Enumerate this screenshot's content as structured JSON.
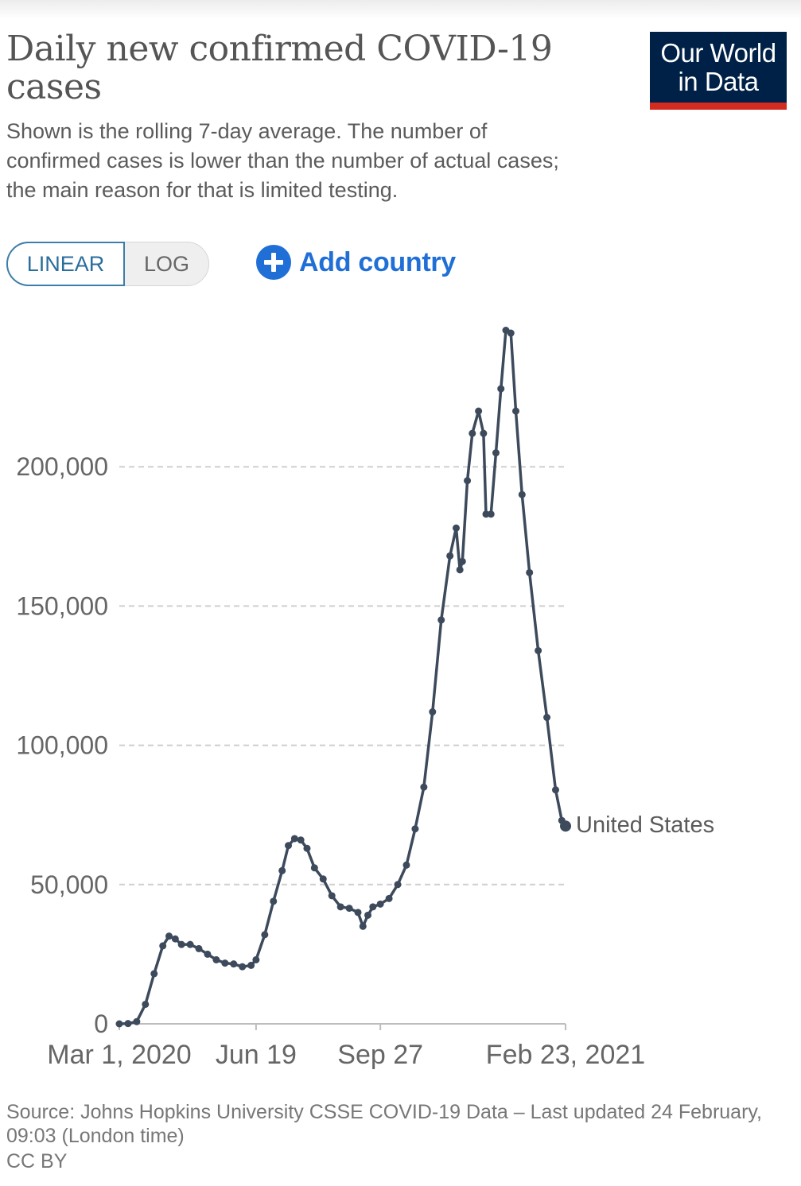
{
  "header": {
    "title": "Daily new confirmed COVID-19 cases",
    "subtitle": "Shown is the rolling 7-day average. The number of confirmed cases is lower than the number of actual cases; the main reason for that is limited testing.",
    "logo_line1": "Our World",
    "logo_line2": "in Data"
  },
  "controls": {
    "linear_label": "LINEAR",
    "log_label": "LOG",
    "selected_scale": "LINEAR",
    "add_country_label": "Add country"
  },
  "colors": {
    "series": "#3d4a5c",
    "accent_blue": "#1f6fd6",
    "toggle_border": "#3c7ea8",
    "logo_bg": "#002147",
    "logo_bar": "#d42b21"
  },
  "footer": {
    "source": "Source: Johns Hopkins University CSSE COVID-19 Data – Last updated 24 February, 09:03 (London time)",
    "license": "CC BY"
  },
  "chart_data": {
    "type": "line",
    "title": "Daily new confirmed COVID-19 cases",
    "xlabel": "",
    "ylabel": "",
    "ylim": [
      0,
      250000
    ],
    "x_range": [
      "2020-03-01",
      "2021-02-23"
    ],
    "yticks": [
      0,
      50000,
      100000,
      150000,
      200000
    ],
    "ytick_labels": [
      "0",
      "50,000",
      "100,000",
      "150,000",
      "200,000"
    ],
    "xticks": [
      "2020-03-01",
      "2020-06-19",
      "2020-09-27",
      "2021-02-23"
    ],
    "xtick_labels": [
      "Mar 1, 2020",
      "Jun 19",
      "Sep 27",
      "Feb 23, 2021"
    ],
    "grid": "horizontal dashed",
    "markers": true,
    "series": [
      {
        "name": "United States",
        "points": [
          [
            "2020-03-01",
            0
          ],
          [
            "2020-03-08",
            100
          ],
          [
            "2020-03-15",
            800
          ],
          [
            "2020-03-22",
            7000
          ],
          [
            "2020-03-29",
            18000
          ],
          [
            "2020-04-05",
            28000
          ],
          [
            "2020-04-10",
            31500
          ],
          [
            "2020-04-15",
            30500
          ],
          [
            "2020-04-20",
            28500
          ],
          [
            "2020-04-27",
            28500
          ],
          [
            "2020-05-04",
            27000
          ],
          [
            "2020-05-11",
            25000
          ],
          [
            "2020-05-18",
            23000
          ],
          [
            "2020-05-25",
            21800
          ],
          [
            "2020-06-01",
            21500
          ],
          [
            "2020-06-08",
            20500
          ],
          [
            "2020-06-15",
            21000
          ],
          [
            "2020-06-19",
            23000
          ],
          [
            "2020-06-26",
            32000
          ],
          [
            "2020-07-03",
            44000
          ],
          [
            "2020-07-10",
            55000
          ],
          [
            "2020-07-15",
            64000
          ],
          [
            "2020-07-20",
            66500
          ],
          [
            "2020-07-25",
            66000
          ],
          [
            "2020-07-30",
            63000
          ],
          [
            "2020-08-05",
            56000
          ],
          [
            "2020-08-12",
            52000
          ],
          [
            "2020-08-19",
            46000
          ],
          [
            "2020-08-26",
            42000
          ],
          [
            "2020-09-02",
            41500
          ],
          [
            "2020-09-09",
            40000
          ],
          [
            "2020-09-13",
            35000
          ],
          [
            "2020-09-17",
            39000
          ],
          [
            "2020-09-21",
            42000
          ],
          [
            "2020-09-27",
            43000
          ],
          [
            "2020-10-04",
            45000
          ],
          [
            "2020-10-11",
            50000
          ],
          [
            "2020-10-18",
            57000
          ],
          [
            "2020-10-25",
            70000
          ],
          [
            "2020-11-01",
            85000
          ],
          [
            "2020-11-08",
            112000
          ],
          [
            "2020-11-15",
            145000
          ],
          [
            "2020-11-22",
            168000
          ],
          [
            "2020-11-27",
            178000
          ],
          [
            "2020-11-30",
            163000
          ],
          [
            "2020-12-02",
            166000
          ],
          [
            "2020-12-06",
            195000
          ],
          [
            "2020-12-10",
            212000
          ],
          [
            "2020-12-15",
            220000
          ],
          [
            "2020-12-19",
            212000
          ],
          [
            "2020-12-21",
            183000
          ],
          [
            "2020-12-25",
            183000
          ],
          [
            "2020-12-29",
            205000
          ],
          [
            "2021-01-02",
            228000
          ],
          [
            "2021-01-06",
            249000
          ],
          [
            "2021-01-10",
            248000
          ],
          [
            "2021-01-14",
            220000
          ],
          [
            "2021-01-19",
            190000
          ],
          [
            "2021-01-25",
            162000
          ],
          [
            "2021-02-01",
            134000
          ],
          [
            "2021-02-08",
            110000
          ],
          [
            "2021-02-15",
            84000
          ],
          [
            "2021-02-20",
            73000
          ],
          [
            "2021-02-23",
            71000
          ]
        ]
      }
    ]
  }
}
